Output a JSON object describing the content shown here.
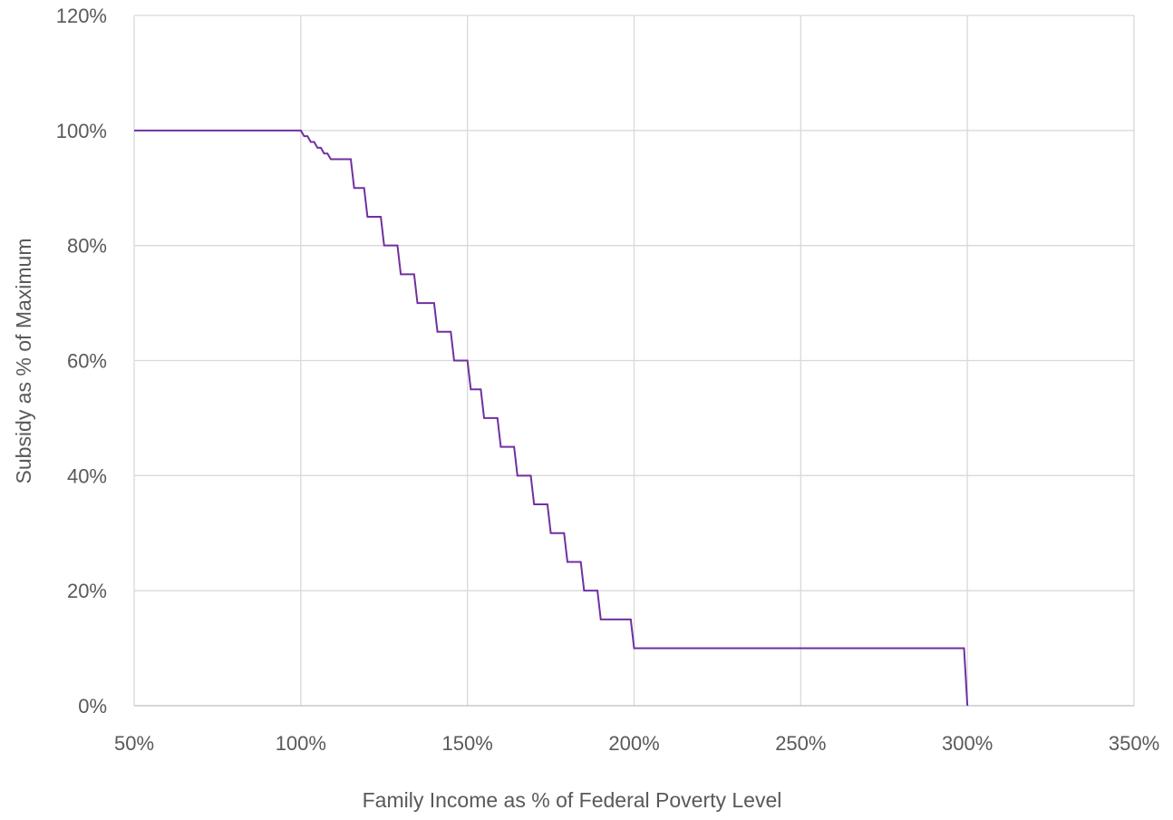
{
  "chart_data": {
    "type": "line",
    "title": "",
    "xlabel": "Family Income as % of Federal Poverty Level",
    "ylabel": "Subsidy as % of Maximum",
    "xlim": [
      50,
      350
    ],
    "ylim": [
      0,
      120
    ],
    "x_ticks": [
      50,
      100,
      150,
      200,
      250,
      300,
      350
    ],
    "x_tick_labels": [
      "50%",
      "100%",
      "150%",
      "200%",
      "250%",
      "300%",
      "350%"
    ],
    "y_ticks": [
      0,
      20,
      40,
      60,
      80,
      100,
      120
    ],
    "y_tick_labels": [
      "0%",
      "20%",
      "40%",
      "60%",
      "80%",
      "100%",
      "120%"
    ],
    "grid": true,
    "legend": "none",
    "colors": {
      "series": "#7030a0",
      "grid": "#d9d9d9",
      "text": "#595959"
    },
    "series": [
      {
        "x": [
          50,
          100,
          101,
          102,
          103,
          104,
          105,
          106,
          107,
          108,
          109,
          110,
          111,
          112,
          113,
          115,
          116,
          119,
          120,
          124,
          125,
          129,
          130,
          134,
          135,
          140,
          141,
          145,
          146,
          150,
          151,
          154,
          155,
          159,
          160,
          164,
          165,
          169,
          170,
          174,
          175,
          179,
          180,
          184,
          185,
          189,
          190,
          199,
          200,
          299,
          300
        ],
        "y": [
          100,
          100,
          99,
          99,
          98,
          98,
          97,
          97,
          96,
          96,
          95,
          95,
          95,
          95,
          95,
          95,
          90,
          90,
          85,
          85,
          80,
          80,
          75,
          75,
          70,
          70,
          65,
          65,
          60,
          60,
          55,
          55,
          50,
          50,
          45,
          45,
          40,
          40,
          35,
          35,
          30,
          30,
          25,
          25,
          20,
          20,
          15,
          15,
          10,
          10,
          0
        ]
      }
    ]
  }
}
